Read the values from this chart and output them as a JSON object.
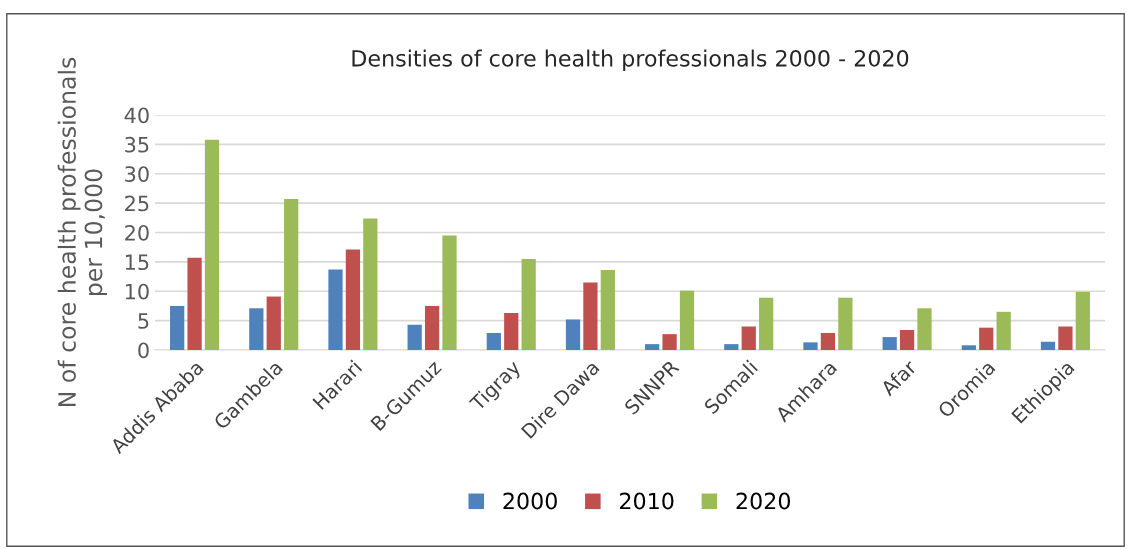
{
  "chart_data": {
    "type": "bar",
    "title": "Densities of core health professionals 2000 - 2020",
    "ylabel": "N of core health professionals\nper 10,000",
    "categories": [
      "Addis Ababa",
      "Gambela",
      "Harari",
      "B-Gumuz",
      "Tigray",
      "Dire Dawa",
      "SNNPR",
      "Somali",
      "Amhara",
      "Afar",
      "Oromia",
      "Ethiopia"
    ],
    "series": [
      {
        "name": "2000",
        "color": "#4f81bd",
        "values": [
          7.5,
          7.1,
          13.7,
          4.3,
          2.9,
          5.2,
          1.0,
          1.0,
          1.3,
          2.2,
          0.8,
          1.4
        ]
      },
      {
        "name": "2010",
        "color": "#c0504d",
        "values": [
          15.7,
          9.1,
          17.1,
          7.5,
          6.3,
          11.5,
          2.7,
          4.0,
          2.9,
          3.4,
          3.8,
          4.0
        ]
      },
      {
        "name": "2020",
        "color": "#9bbb59",
        "values": [
          35.8,
          25.7,
          22.4,
          19.5,
          15.5,
          13.6,
          10.1,
          8.9,
          8.9,
          7.1,
          6.5,
          9.9
        ]
      }
    ],
    "ylim": [
      0,
      40
    ],
    "yticks": [
      0,
      5,
      10,
      15,
      20,
      25,
      30,
      35,
      40
    ],
    "grid": "y",
    "legend": "bottom"
  }
}
